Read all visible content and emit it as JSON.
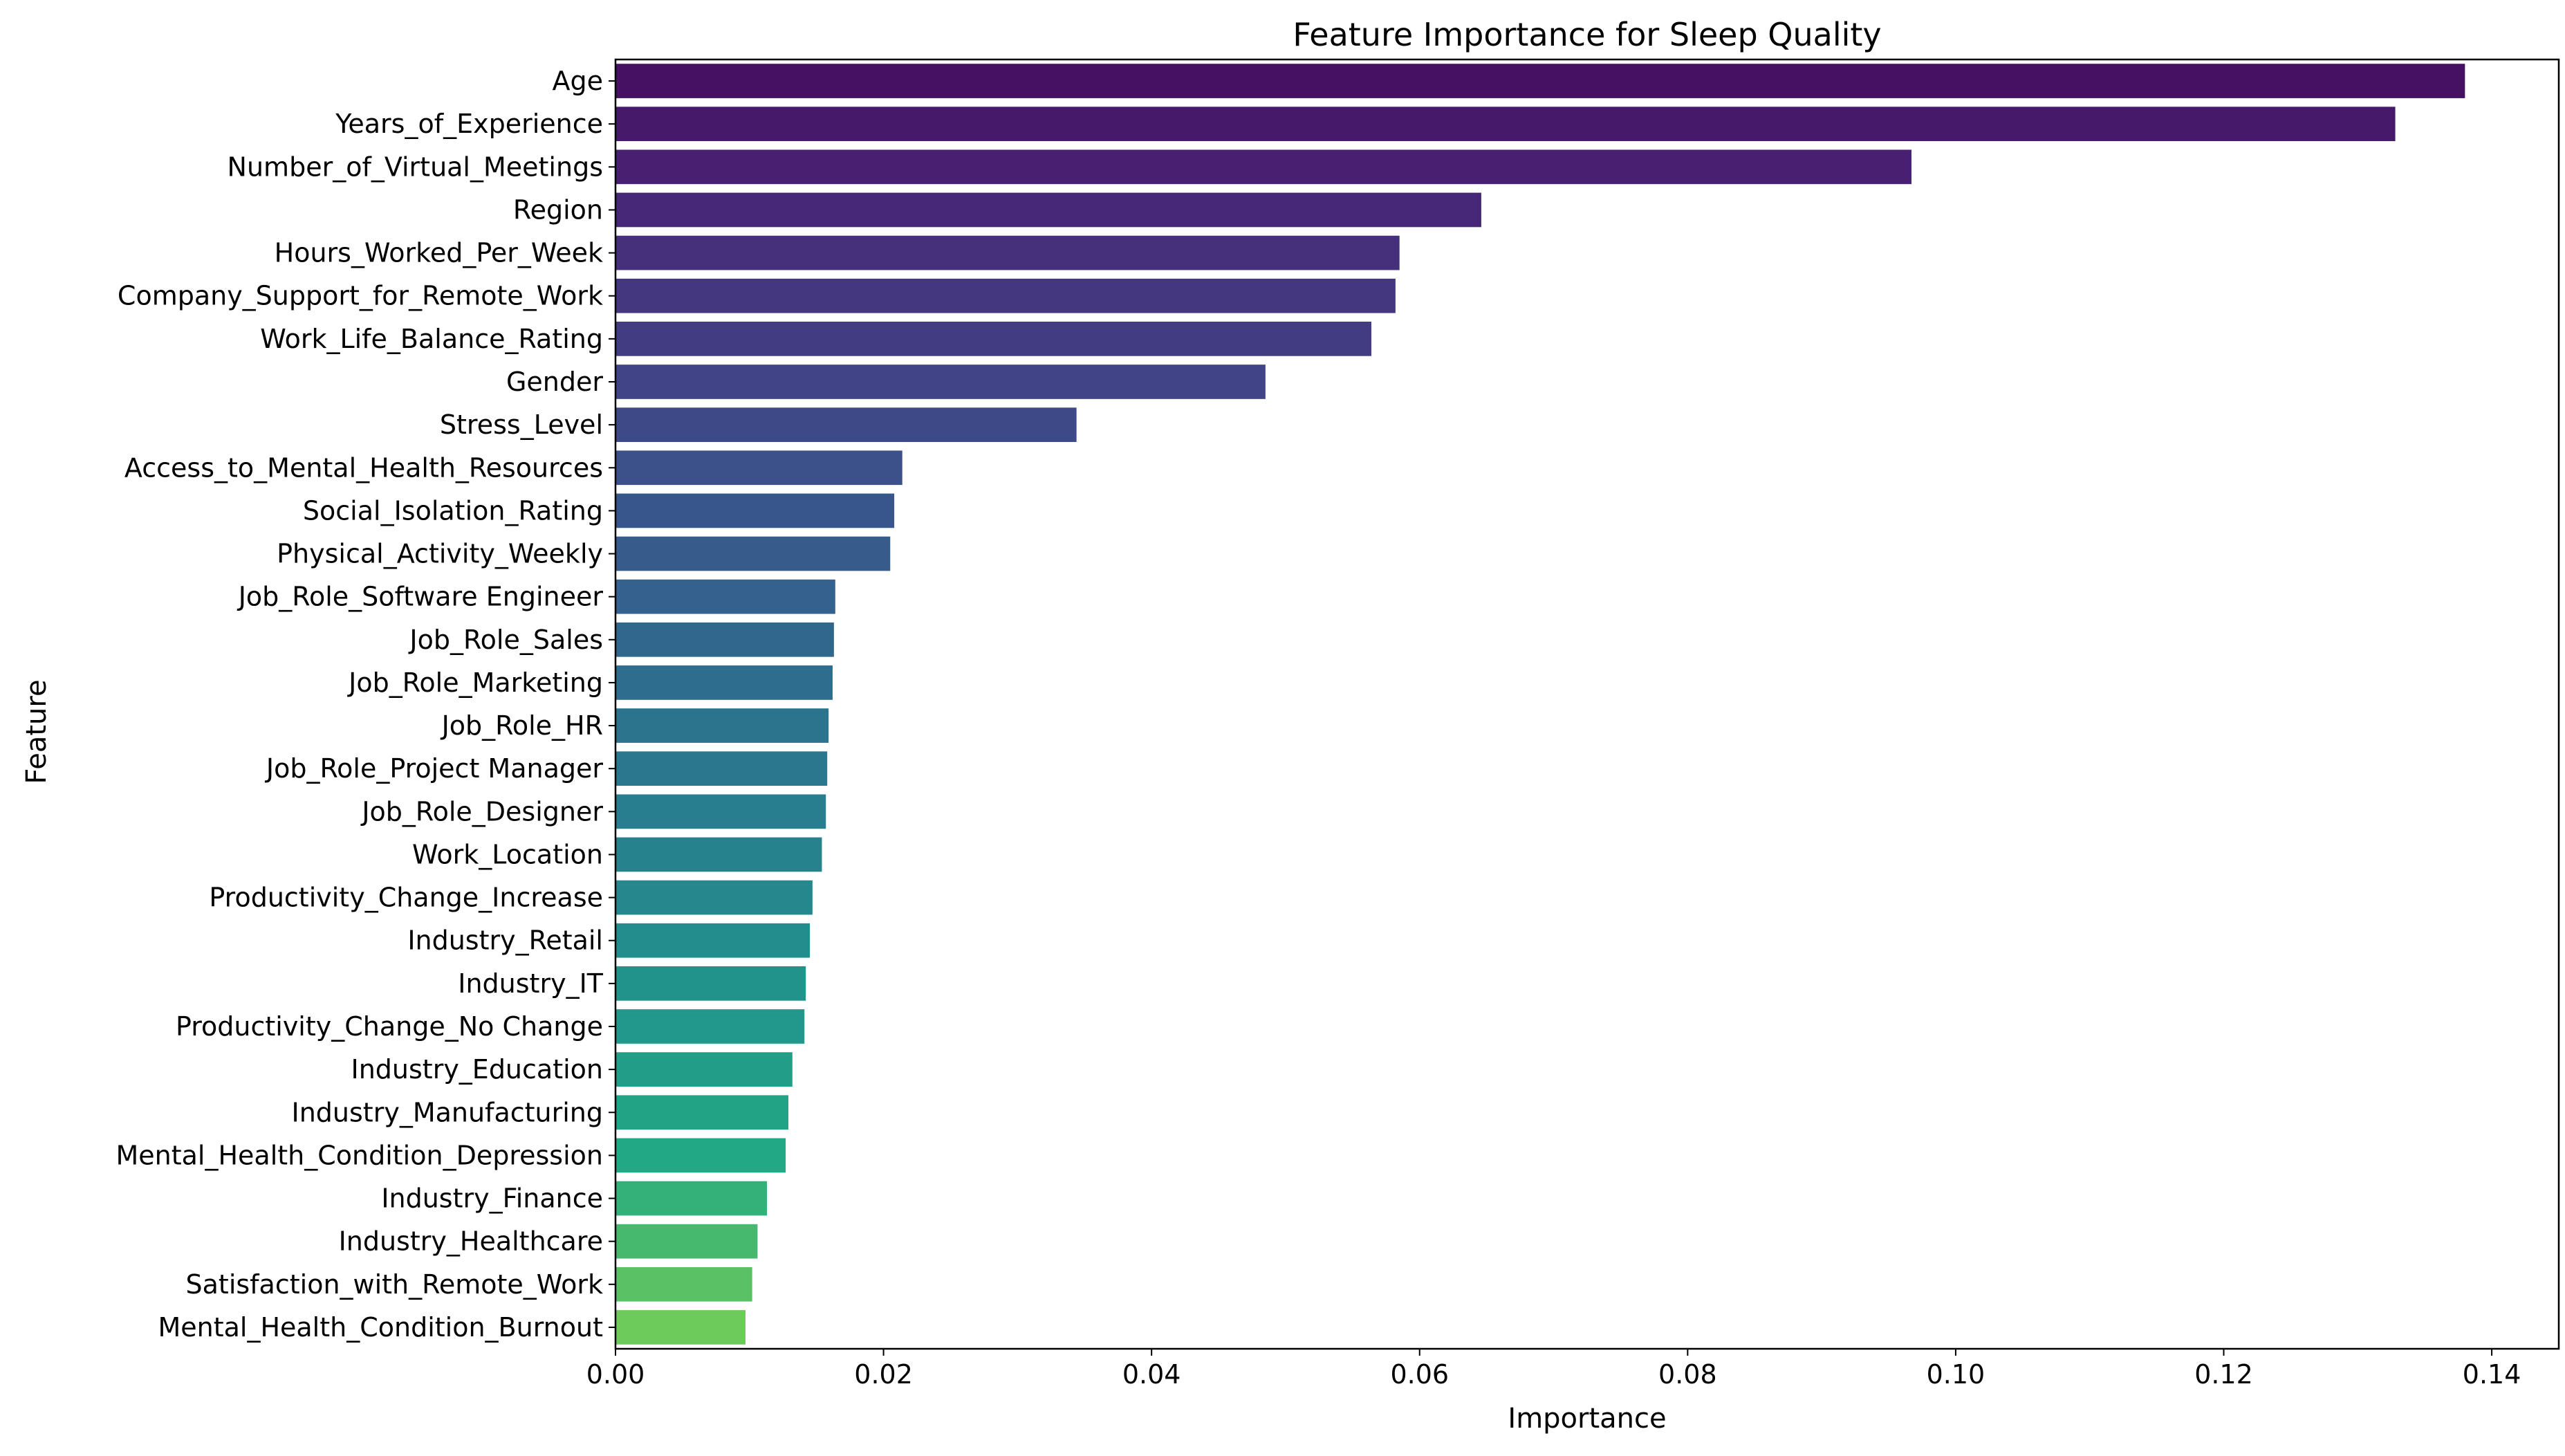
{
  "chart_data": {
    "type": "bar",
    "orientation": "horizontal",
    "title": "Feature Importance for Sleep Quality",
    "xlabel": "Importance",
    "ylabel": "Feature",
    "xlim": [
      0,
      0.145
    ],
    "xticks": [
      "0.00",
      "0.02",
      "0.04",
      "0.06",
      "0.08",
      "0.10",
      "0.12",
      "0.14"
    ],
    "grid": false,
    "legend": "none",
    "palette": "viridis",
    "categories": [
      "Age",
      "Years_of_Experience",
      "Number_of_Virtual_Meetings",
      "Region",
      "Hours_Worked_Per_Week",
      "Company_Support_for_Remote_Work",
      "Work_Life_Balance_Rating",
      "Gender",
      "Stress_Level",
      "Access_to_Mental_Health_Resources",
      "Social_Isolation_Rating",
      "Physical_Activity_Weekly",
      "Job_Role_Software Engineer",
      "Job_Role_Sales",
      "Job_Role_Marketing",
      "Job_Role_HR",
      "Job_Role_Project Manager",
      "Job_Role_Designer",
      "Work_Location",
      "Productivity_Change_Increase",
      "Industry_Retail",
      "Industry_IT",
      "Productivity_Change_No Change",
      "Industry_Education",
      "Industry_Manufacturing",
      "Mental_Health_Condition_Depression",
      "Industry_Finance",
      "Industry_Healthcare",
      "Satisfaction_with_Remote_Work",
      "Mental_Health_Condition_Burnout"
    ],
    "values": [
      0.138,
      0.1328,
      0.0967,
      0.0646,
      0.0585,
      0.0582,
      0.0564,
      0.0485,
      0.0344,
      0.0214,
      0.0208,
      0.0205,
      0.0164,
      0.0163,
      0.0162,
      0.0159,
      0.0158,
      0.0157,
      0.0154,
      0.0147,
      0.0145,
      0.0142,
      0.0141,
      0.0132,
      0.0129,
      0.0127,
      0.0113,
      0.0106,
      0.0102,
      0.0097
    ]
  }
}
